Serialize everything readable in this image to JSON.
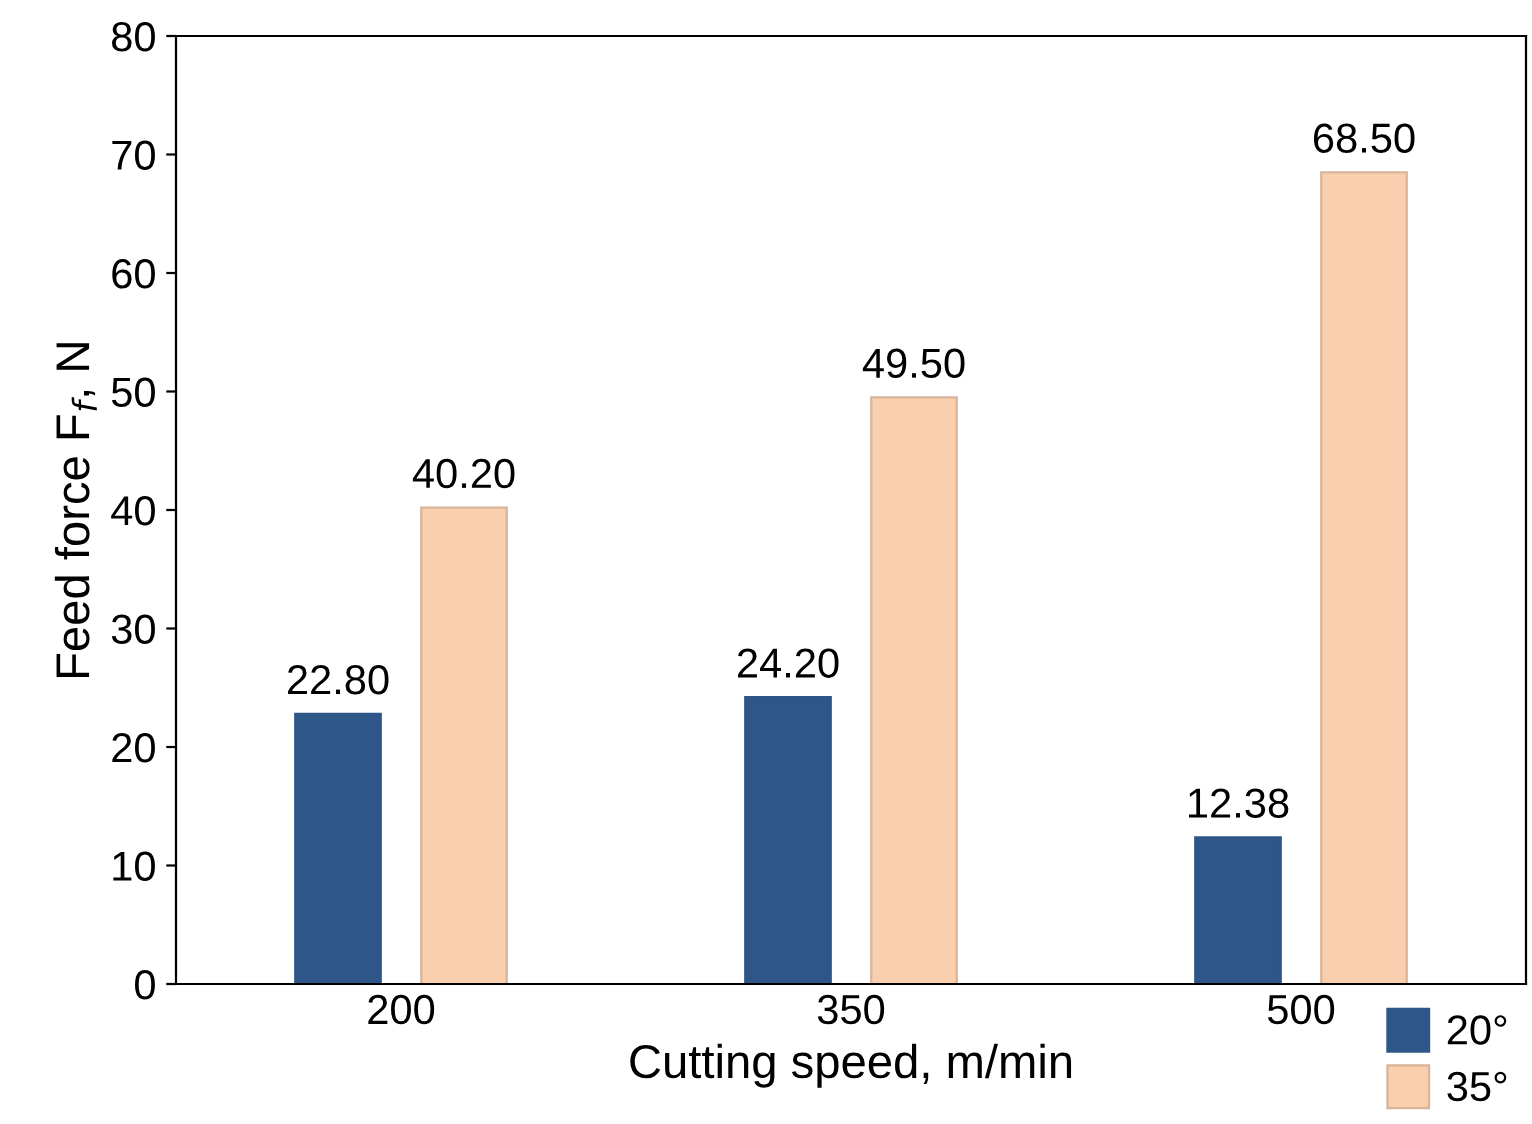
{
  "chart_data": {
    "type": "bar",
    "xlabel": "Cutting speed, m/min",
    "ylabel": "Feed force F$_{f}$, N",
    "categories": [
      "200",
      "350",
      "500"
    ],
    "series": [
      {
        "name": "20°",
        "color": "#2f5689",
        "values": [
          22.8,
          24.2,
          12.38
        ],
        "value_labels": [
          "22.80",
          "24.20",
          "12.38"
        ]
      },
      {
        "name": "35°",
        "color": "#f9cfae",
        "values": [
          40.2,
          49.5,
          68.5
        ],
        "value_labels": [
          "40.20",
          "49.50",
          "68.50"
        ]
      }
    ],
    "ylim": [
      0,
      80
    ],
    "yticks": [
      0,
      10,
      20,
      30,
      40,
      50,
      60,
      70,
      80
    ],
    "grid": false,
    "legend": "bottom right"
  }
}
